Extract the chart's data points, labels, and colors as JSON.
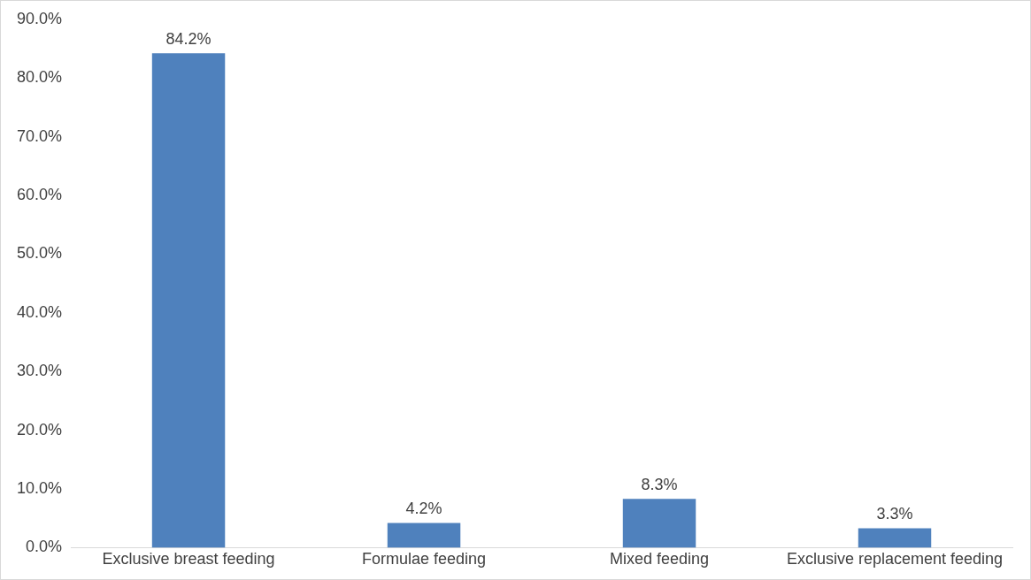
{
  "chart_data": {
    "type": "bar",
    "categories": [
      "Exclusive breast feeding",
      "Formulae feeding",
      "Mixed feeding",
      "Exclusive replacement feeding"
    ],
    "values": [
      84.2,
      4.2,
      8.3,
      3.3
    ],
    "color": "#4f81bd",
    "value_labels": [
      "84.2%",
      "4.2%",
      "8.3%",
      "3.3%"
    ],
    "ylim": [
      0,
      90
    ],
    "yticks": [
      {
        "value": 0,
        "label": "0.0%"
      },
      {
        "value": 10,
        "label": "10.0%"
      },
      {
        "value": 20,
        "label": "20.0%"
      },
      {
        "value": 30,
        "label": "30.0%"
      },
      {
        "value": 40,
        "label": "40.0%"
      },
      {
        "value": 50,
        "label": "50.0%"
      },
      {
        "value": 60,
        "label": "60.0%"
      },
      {
        "value": 70,
        "label": "70.0%"
      },
      {
        "value": 80,
        "label": "80.0%"
      },
      {
        "value": 90,
        "label": "90.0%"
      }
    ],
    "grid": false,
    "legend": false
  }
}
